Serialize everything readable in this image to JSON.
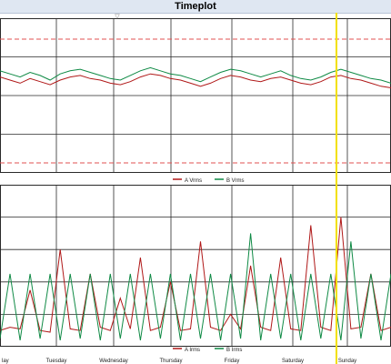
{
  "title": "Timeplot",
  "marker_label": "▽",
  "colors": {
    "series_a": "#b01818",
    "series_b": "#0f8a45",
    "grid": "#2a2a2a",
    "limit": "#e05050",
    "cursor": "#f2e000"
  },
  "chart_data": [
    {
      "type": "line",
      "panel": "voltage",
      "x_ticks": [
        "",
        "Tuesday",
        "Wednesday",
        "Thursday",
        "Friday",
        "Saturday",
        "Sunday"
      ],
      "legend": {
        "position": "bottom-center"
      },
      "grid": true,
      "limit_lines": "dashed red upper and lower thresholds",
      "series": [
        {
          "name": "A Vrms",
          "values": [
            0.62,
            0.6,
            0.58,
            0.61,
            0.59,
            0.57,
            0.6,
            0.62,
            0.63,
            0.61,
            0.6,
            0.58,
            0.57,
            0.59,
            0.62,
            0.64,
            0.63,
            0.61,
            0.6,
            0.58,
            0.56,
            0.58,
            0.61,
            0.63,
            0.62,
            0.6,
            0.59,
            0.61,
            0.62,
            0.6,
            0.58,
            0.57,
            0.59,
            0.62,
            0.63,
            0.61,
            0.6,
            0.58,
            0.56,
            0.55
          ]
        },
        {
          "name": "B Vrms",
          "values": [
            0.66,
            0.64,
            0.62,
            0.65,
            0.63,
            0.6,
            0.64,
            0.66,
            0.67,
            0.65,
            0.63,
            0.61,
            0.6,
            0.63,
            0.66,
            0.68,
            0.66,
            0.64,
            0.63,
            0.61,
            0.59,
            0.62,
            0.65,
            0.67,
            0.66,
            0.64,
            0.62,
            0.64,
            0.66,
            0.63,
            0.61,
            0.6,
            0.62,
            0.65,
            0.67,
            0.65,
            0.63,
            0.61,
            0.6,
            0.58
          ]
        }
      ]
    },
    {
      "type": "line",
      "panel": "current",
      "x_ticks": [
        "lay",
        "Tuesday",
        "Wednesday",
        "Thursday",
        "Friday",
        "Saturday",
        "Sunday"
      ],
      "legend": {
        "position": "bottom-center"
      },
      "grid": true,
      "series": [
        {
          "name": "A Irms",
          "values": [
            0.1,
            0.12,
            0.11,
            0.35,
            0.1,
            0.09,
            0.6,
            0.11,
            0.1,
            0.45,
            0.12,
            0.1,
            0.3,
            0.11,
            0.55,
            0.1,
            0.12,
            0.4,
            0.1,
            0.11,
            0.65,
            0.12,
            0.1,
            0.2,
            0.11,
            0.5,
            0.12,
            0.1,
            0.55,
            0.11,
            0.1,
            0.75,
            0.12,
            0.1,
            0.8,
            0.11,
            0.12,
            0.45,
            0.1,
            0.12
          ]
        },
        {
          "name": "B Irms",
          "values": [
            0.05,
            0.45,
            0.04,
            0.45,
            0.05,
            0.45,
            0.04,
            0.45,
            0.05,
            0.45,
            0.04,
            0.45,
            0.05,
            0.45,
            0.04,
            0.45,
            0.05,
            0.45,
            0.04,
            0.45,
            0.05,
            0.45,
            0.04,
            0.45,
            0.05,
            0.7,
            0.04,
            0.45,
            0.05,
            0.45,
            0.04,
            0.45,
            0.05,
            0.45,
            0.04,
            0.65,
            0.05,
            0.45,
            0.04,
            0.45
          ]
        }
      ]
    }
  ]
}
